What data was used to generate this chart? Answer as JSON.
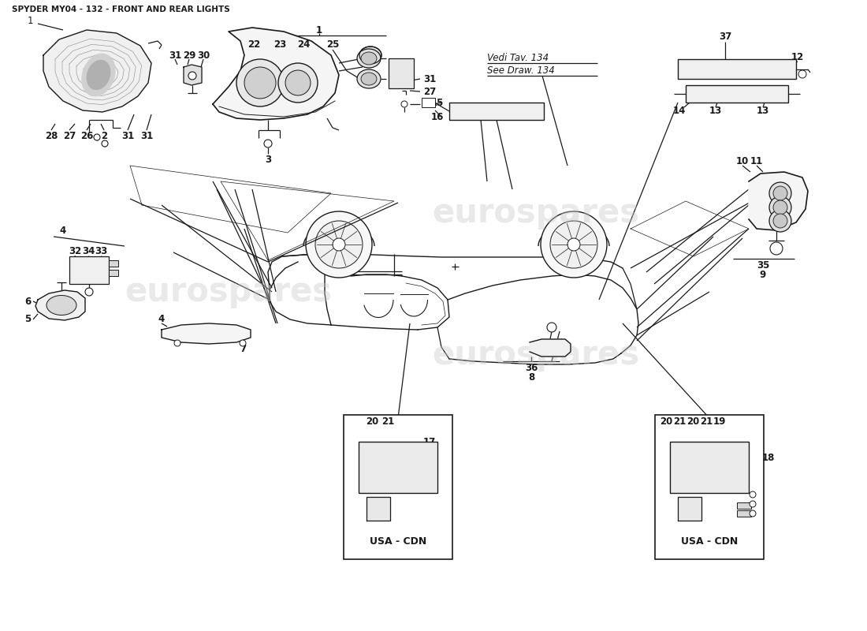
{
  "title": "SPYDER MY04 - 132 - FRONT AND REAR LIGHTS",
  "background_color": "#ffffff",
  "line_color": "#1a1a1a",
  "text_color": "#1a1a1a",
  "title_fontsize": 7.5,
  "label_fontsize": 8.5,
  "vedi_line1": "Vedi Tav. 134",
  "vedi_line2": "See Draw. 134",
  "usa_cdn_text": "USA - CDN",
  "watermark1": "eurospares",
  "watermark2": "eurospares"
}
